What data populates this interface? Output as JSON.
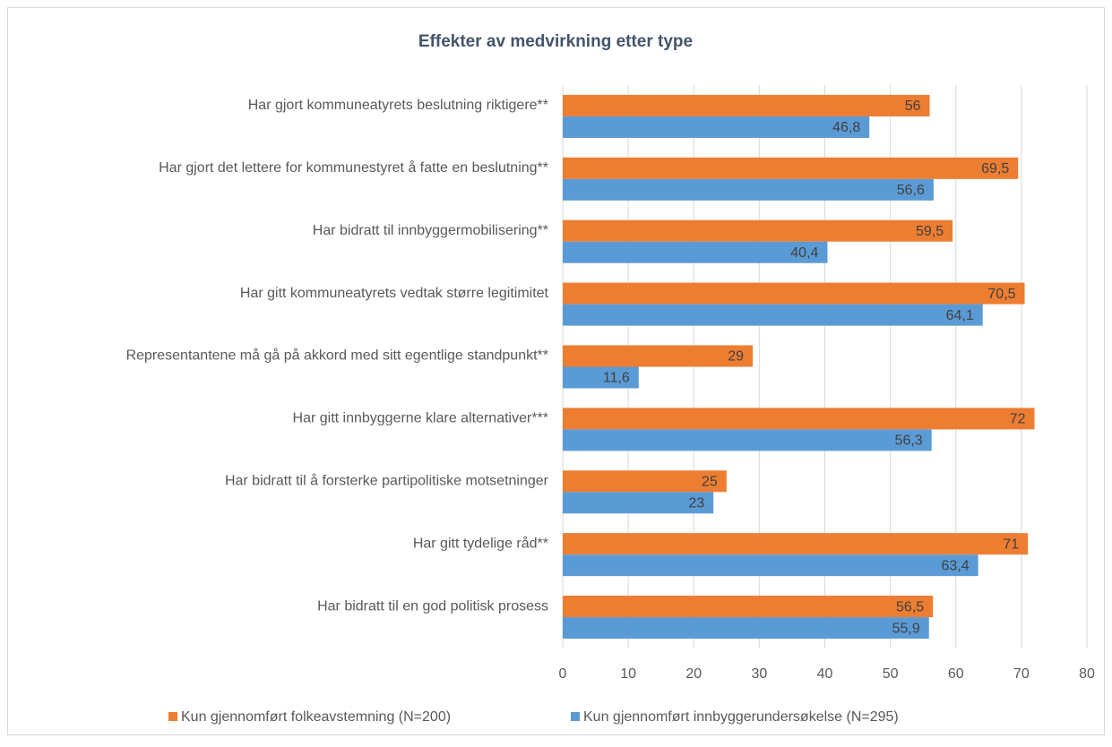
{
  "chart_data": {
    "type": "hbar",
    "title": "Effekter av medvirkning etter type",
    "categories": [
      "Har gjort kommuneatyrets beslutning riktigere**",
      "Har gjort det lettere for kommunestyret å fatte en beslutning**",
      "Har bidratt til innbyggermobilisering**",
      "Har gitt kommuneatyrets vedtak større legitimitet",
      "Representantene må gå på akkord med sitt egentlige standpunkt**",
      "Har gitt innbyggerne klare alternativer***",
      "Har bidratt til å forsterke partipolitiske motsetninger",
      "Har gitt tydelige råd**",
      "Har bidratt til en god politisk prosess"
    ],
    "series": [
      {
        "name": "Kun gjennomført folkeavstemning (N=200)",
        "color": "#ed7d31",
        "values": [
          56,
          69.5,
          59.5,
          70.5,
          29,
          72,
          25,
          71,
          56.5
        ],
        "value_labels": [
          "56",
          "69,5",
          "59,5",
          "70,5",
          "29",
          "72",
          "25",
          "71",
          "56,5"
        ]
      },
      {
        "name": "Kun gjennomført innbyggerundersøkelse (N=295)",
        "color": "#5b9bd5",
        "values": [
          46.8,
          56.6,
          40.4,
          64.1,
          11.6,
          56.3,
          23,
          63.4,
          55.9
        ],
        "value_labels": [
          "46,8",
          "56,6",
          "40,4",
          "64,1",
          "11,6",
          "56,3",
          "23",
          "63,4",
          "55,9"
        ]
      }
    ],
    "xlim": [
      0,
      80
    ],
    "xticks": [
      0,
      10,
      20,
      30,
      40,
      50,
      60,
      70,
      80
    ],
    "grid": true,
    "legend": "bottom"
  }
}
